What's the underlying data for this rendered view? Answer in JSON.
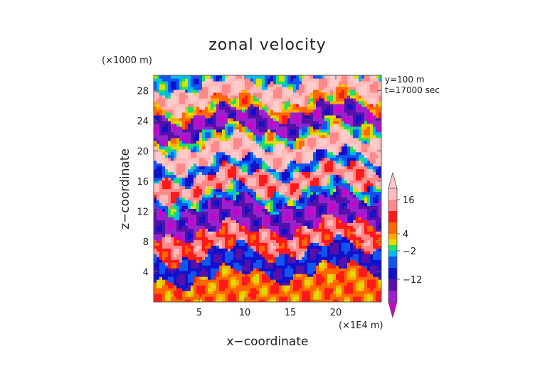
{
  "chart_data": {
    "type": "heatmap",
    "title": "zonal velocity",
    "xlabel": "x−coordinate",
    "ylabel": "z−coordinate",
    "x_unit_label": "(×1E4 m)",
    "y_unit_label": "(×1000 m)",
    "annotations": [
      "y=100  m",
      "t=17000 sec"
    ],
    "xlim": [
      0,
      25
    ],
    "ylim": [
      0,
      30
    ],
    "x_ticks": [
      "5",
      "10",
      "15",
      "20"
    ],
    "x_tick_values": [
      5,
      10,
      15,
      20
    ],
    "y_ticks": [
      "4",
      "8",
      "12",
      "16",
      "20",
      "24",
      "28"
    ],
    "y_tick_values": [
      4,
      8,
      12,
      16,
      20,
      24,
      28
    ],
    "colorbar": {
      "tick_labels": [
        "16",
        "4",
        "−2",
        "−12"
      ],
      "tick_values": [
        16,
        4,
        -2,
        -12
      ],
      "extend": "both",
      "levels": [
        -20,
        -16,
        -12,
        -8,
        -4,
        -2,
        0,
        2,
        4,
        8,
        12,
        16,
        20
      ],
      "colors": [
        "#cc00cc",
        "#9922cc",
        "#5511aa",
        "#1111cc",
        "#1155ee",
        "#00bbee",
        "#22dd66",
        "#dddd00",
        "#ffaa00",
        "#ff6600",
        "#ff1a1a",
        "#ff8888",
        "#ffbbbb",
        "#ffcccc"
      ]
    },
    "bands": [
      {
        "z": [
          28.5,
          30
        ],
        "value": -4
      },
      {
        "z": [
          26,
          28.5
        ],
        "value": 18
      },
      {
        "z": [
          24.5,
          26
        ],
        "value": 4
      },
      {
        "z": [
          22,
          24.5
        ],
        "value": -16
      },
      {
        "z": [
          20.5,
          22
        ],
        "value": 0
      },
      {
        "z": [
          18,
          20.5
        ],
        "value": 18
      },
      {
        "z": [
          16.5,
          18
        ],
        "value": -6
      },
      {
        "z": [
          14,
          16.5
        ],
        "value": 14
      },
      {
        "z": [
          12.5,
          14
        ],
        "value": -4
      },
      {
        "z": [
          9,
          12.5
        ],
        "value": -16
      },
      {
        "z": [
          6,
          9
        ],
        "value": 12
      },
      {
        "z": [
          3,
          6
        ],
        "value": -10
      },
      {
        "z": [
          0,
          3
        ],
        "value": 6
      }
    ]
  }
}
